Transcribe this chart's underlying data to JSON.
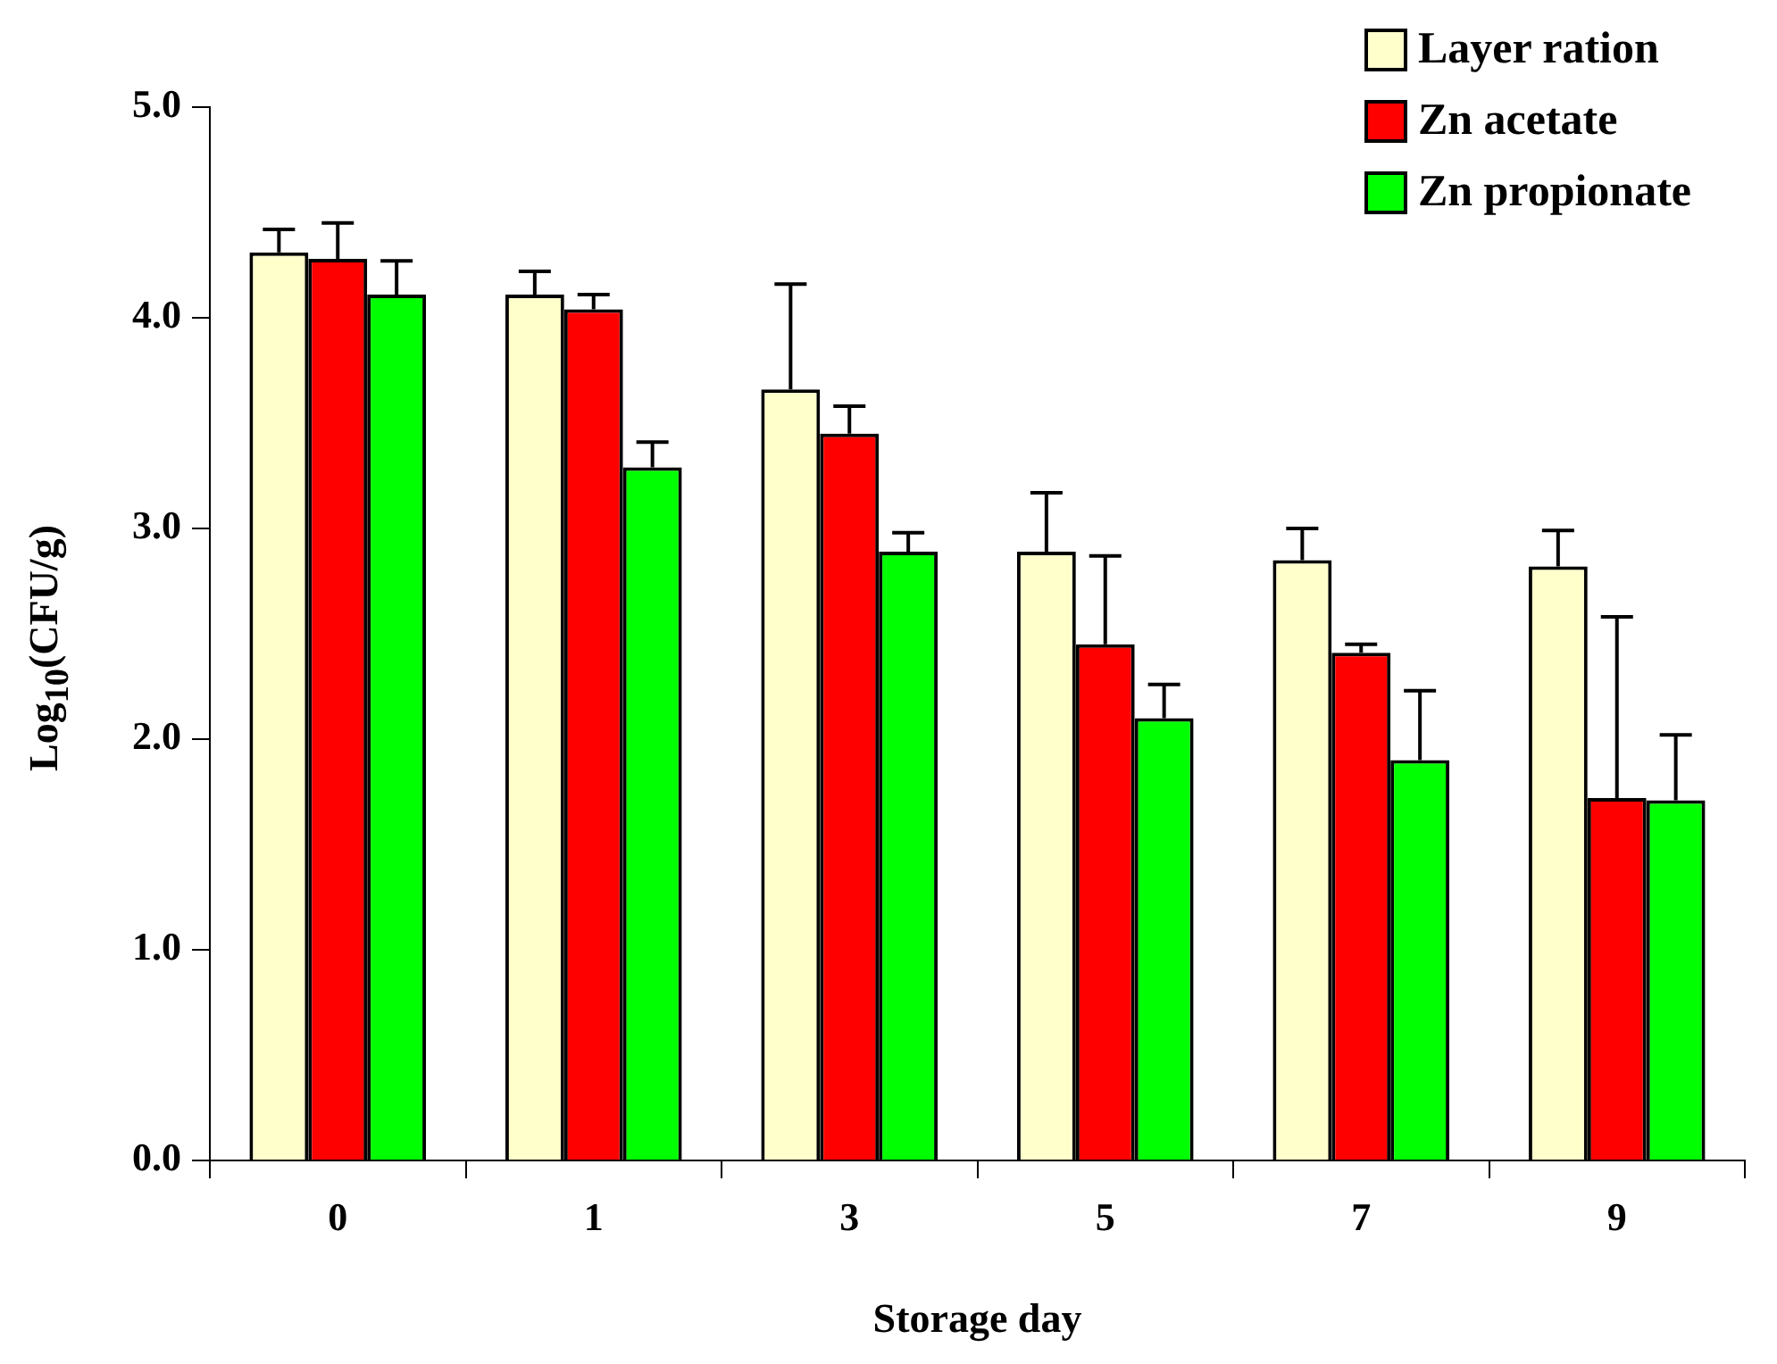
{
  "chart_data": {
    "type": "bar",
    "xlabel": "Storage day",
    "ylabel": "Log$_{10}$(CFU/g)",
    "categories": [
      "0",
      "1",
      "3",
      "5",
      "7",
      "9"
    ],
    "series": [
      {
        "name": "Layer ration",
        "color": "#ffffcc",
        "values": [
          4.31,
          4.11,
          3.66,
          2.89,
          2.85,
          2.82
        ],
        "errors": [
          [
            4.31,
            4.42
          ],
          [
            4.11,
            4.22
          ],
          [
            3.66,
            4.16
          ],
          [
            2.89,
            3.17
          ],
          [
            2.85,
            3.0
          ],
          [
            2.82,
            2.99
          ]
        ]
      },
      {
        "name": "Zn acetate",
        "color": "#ff0000",
        "values": [
          4.28,
          4.04,
          3.45,
          2.45,
          2.41,
          1.72
        ],
        "errors": [
          [
            4.28,
            4.45
          ],
          [
            4.04,
            4.11
          ],
          [
            3.45,
            3.58
          ],
          [
            2.45,
            2.87
          ],
          [
            2.41,
            2.45
          ],
          [
            1.72,
            2.58
          ]
        ]
      },
      {
        "name": "Zn propionate",
        "color": "#00ff00",
        "values": [
          4.11,
          3.29,
          2.89,
          2.1,
          1.9,
          1.71
        ],
        "errors": [
          [
            4.11,
            4.27
          ],
          [
            3.29,
            3.41
          ],
          [
            2.89,
            2.98
          ],
          [
            2.1,
            2.26
          ],
          [
            1.9,
            2.23
          ],
          [
            1.71,
            2.02
          ]
        ]
      }
    ],
    "ylim": [
      0,
      5
    ],
    "yticks": [
      {
        "value": 0,
        "label": "0.0"
      },
      {
        "value": 1,
        "label": "1.0"
      },
      {
        "value": 2,
        "label": "2.0"
      },
      {
        "value": 3,
        "label": "3.0"
      },
      {
        "value": 4,
        "label": "4.0"
      },
      {
        "value": 5,
        "label": "5.0"
      }
    ],
    "grid": false,
    "legend": "top right"
  }
}
